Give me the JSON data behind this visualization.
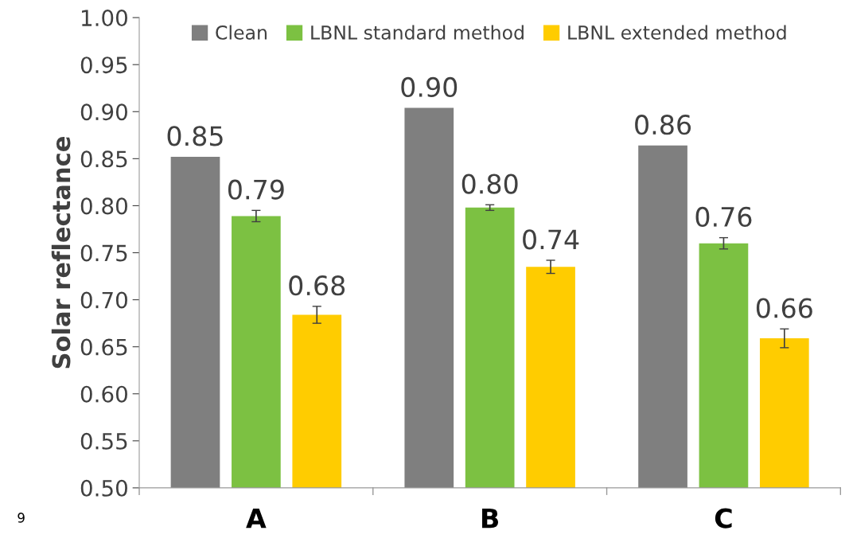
{
  "chart_data": {
    "type": "bar",
    "ylabel": "Solar reflectance",
    "categories": [
      "A",
      "B",
      "C"
    ],
    "series": [
      {
        "name": "Clean",
        "color": "#7f7f7f",
        "values": [
          0.852,
          0.904,
          0.864
        ],
        "value_labels": [
          "0.85",
          "0.90",
          "0.86"
        ]
      },
      {
        "name": "LBNL standard method",
        "color": "#7cc142",
        "values": [
          0.789,
          0.798,
          0.76
        ],
        "errors": [
          0.006,
          0.003,
          0.006
        ],
        "value_labels": [
          "0.79",
          "0.80",
          "0.76"
        ]
      },
      {
        "name": "LBNL extended method",
        "color": "#ffcc00",
        "values": [
          0.684,
          0.735,
          0.659
        ],
        "errors": [
          0.009,
          0.007,
          0.01
        ],
        "value_labels": [
          "0.68",
          "0.74",
          "0.66"
        ]
      }
    ],
    "ylim": [
      0.5,
      1.0
    ],
    "yticks": [
      {
        "value": 0.5,
        "label": "0.50"
      },
      {
        "value": 0.55,
        "label": "0.55"
      },
      {
        "value": 0.6,
        "label": "0.60"
      },
      {
        "value": 0.65,
        "label": "0.65"
      },
      {
        "value": 0.7,
        "label": "0.70"
      },
      {
        "value": 0.75,
        "label": "0.75"
      },
      {
        "value": 0.8,
        "label": "0.80"
      },
      {
        "value": 0.85,
        "label": "0.85"
      },
      {
        "value": 0.9,
        "label": "0.90"
      },
      {
        "value": 0.95,
        "label": "0.95"
      },
      {
        "value": 1.0,
        "label": "1.00"
      }
    ],
    "grid": false,
    "legend": "top",
    "annotations": [
      "9"
    ]
  }
}
